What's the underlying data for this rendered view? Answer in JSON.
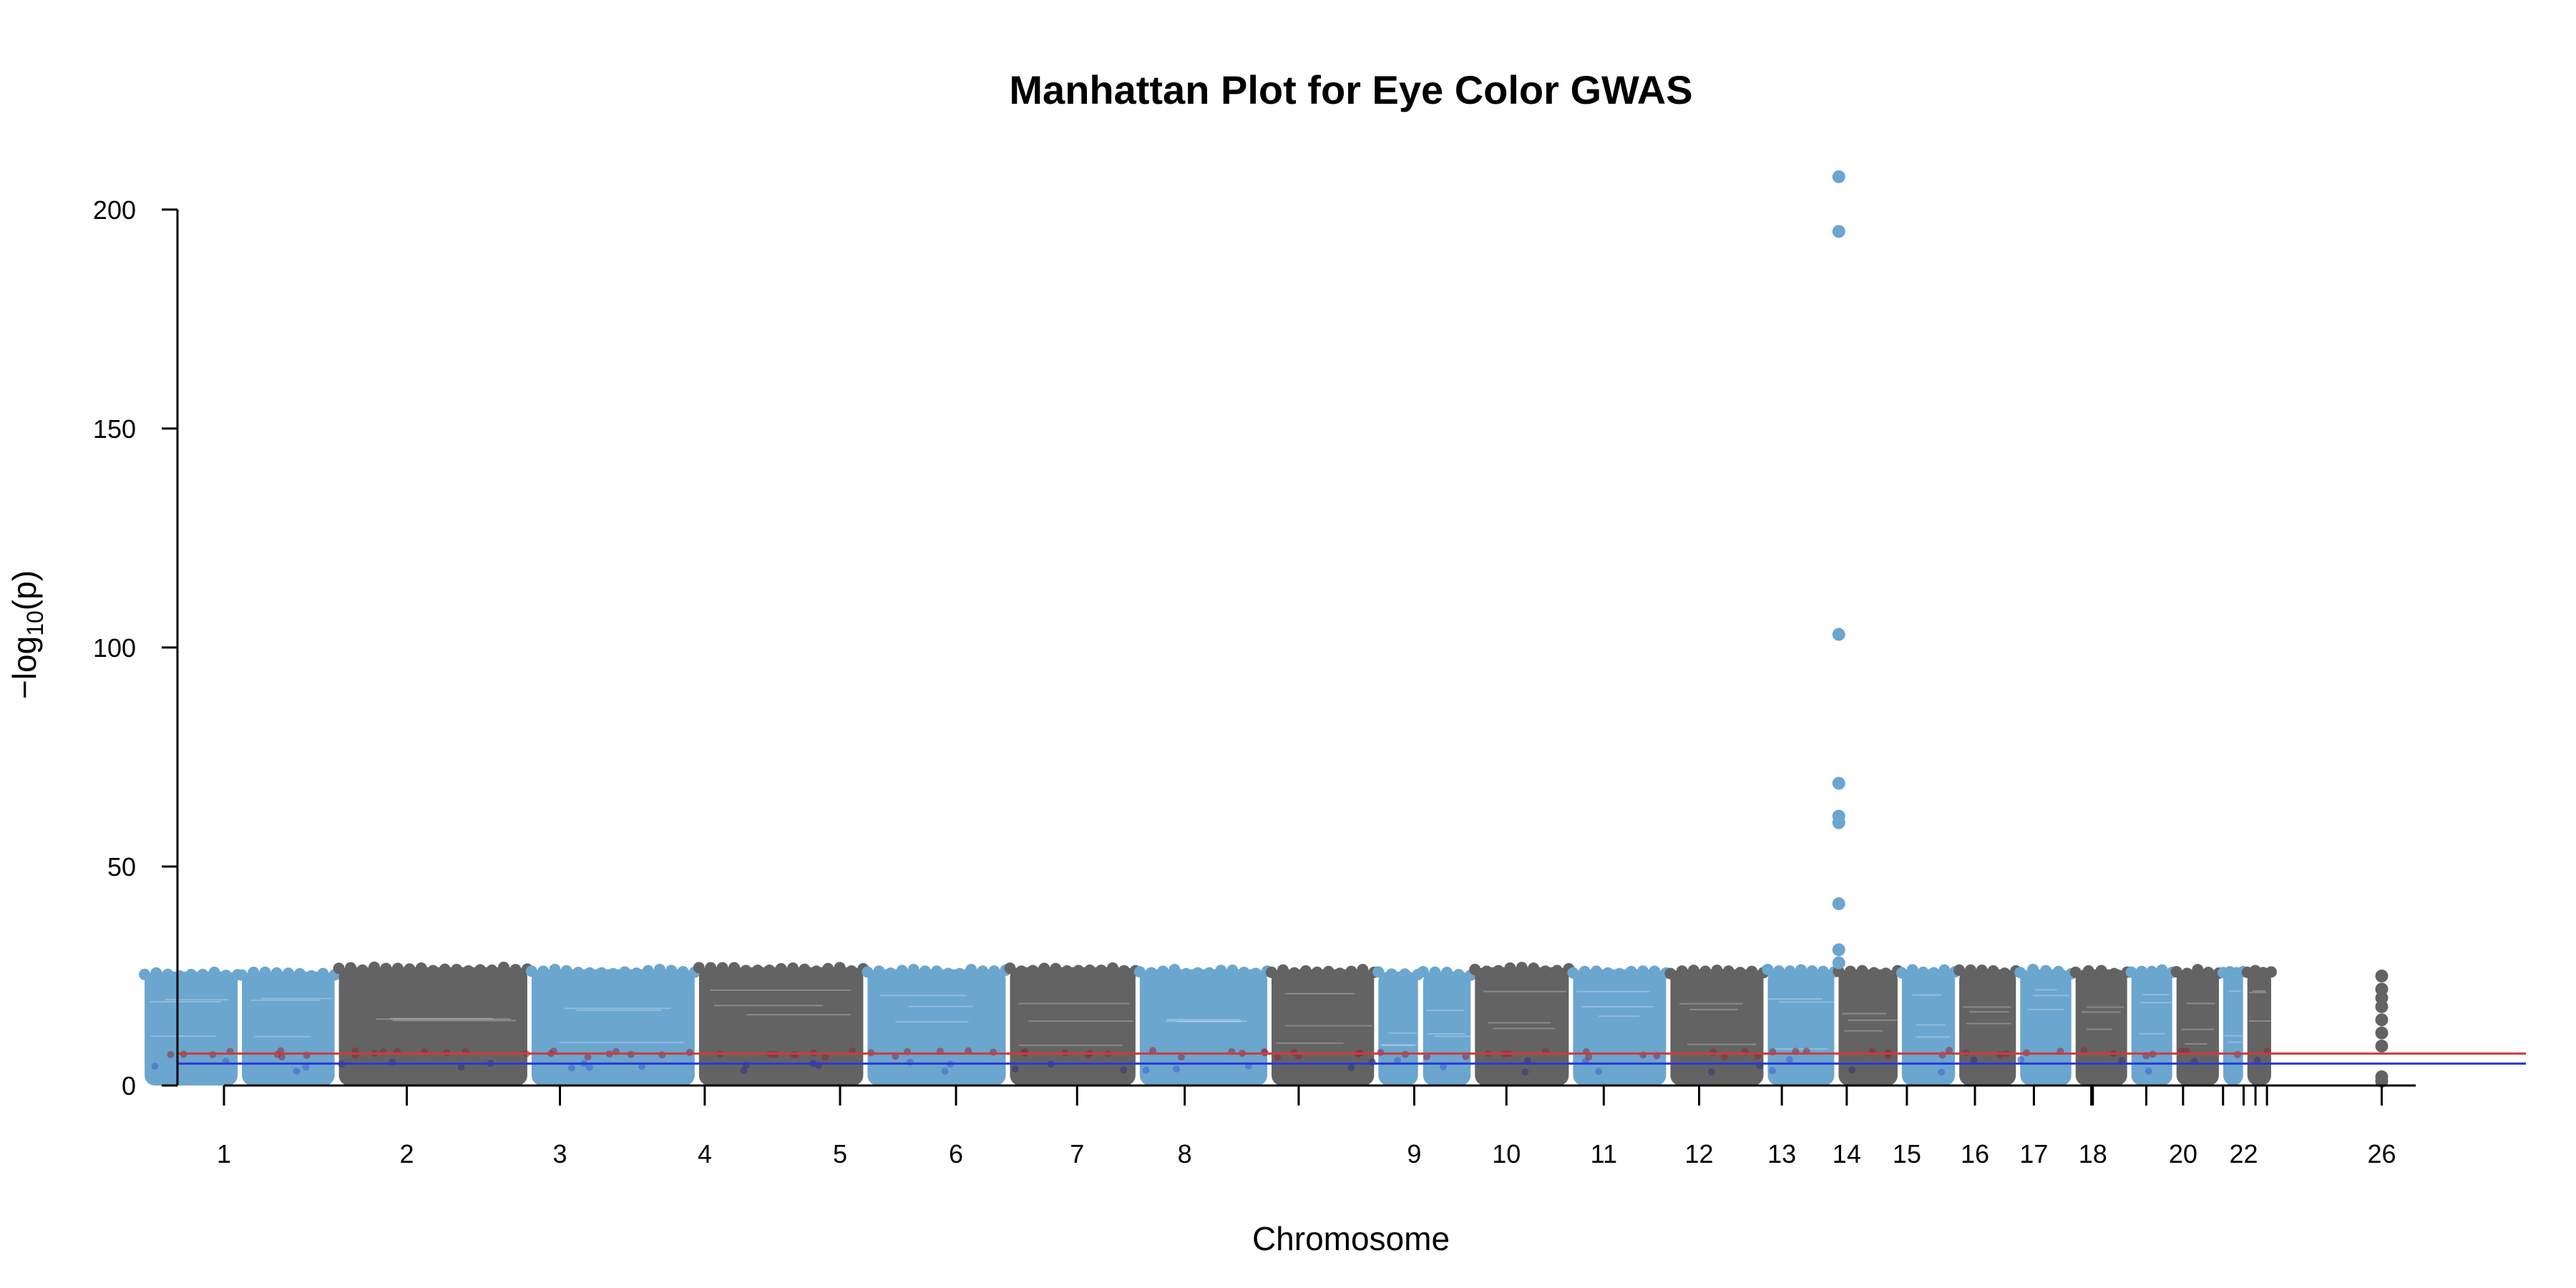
{
  "chart_data": {
    "type": "scatter",
    "subtype": "manhattan",
    "title": "Manhattan Plot for Eye Color GWAS",
    "xlabel": "Chromosome",
    "ylabel": "−log10(p)",
    "ylabel_main": "−log",
    "ylabel_sub": "10",
    "ylabel_paren": "(p)",
    "ylim": [
      0,
      207
    ],
    "yticks": [
      0,
      50,
      100,
      150,
      200
    ],
    "grid": false,
    "legend": "none",
    "colors": {
      "light": "#6BA6CF",
      "dark": "#636363",
      "suggestive_line": "#2A38D6",
      "genomewide_line": "#D03A3A"
    },
    "thresholds": {
      "genomewide": 7.3,
      "suggestive": 5
    },
    "chromosomes": [
      {
        "label": "1",
        "color": "light",
        "start": 0,
        "end": 24.6,
        "max_band": 26
      },
      {
        "label": "",
        "color": "light",
        "start": 24.6,
        "end": 49.1,
        "max_band": 26
      },
      {
        "label": "2",
        "color": "dark",
        "start": 49.1,
        "end": 97.8,
        "max_band": 27
      },
      {
        "label": "3",
        "color": "light",
        "start": 97.8,
        "end": 140.1,
        "max_band": 26.5
      },
      {
        "label": "4",
        "color": "dark",
        "start": 140.1,
        "end": 182.7,
        "max_band": 27
      },
      {
        "label": "5",
        "color": "light",
        "start": 182.7,
        "end": 218.7,
        "max_band": 26.5
      },
      {
        "label": "6",
        "color": "dark",
        "start": 218.7,
        "end": 251.5,
        "max_band": 27
      },
      {
        "label": "7",
        "color": "light",
        "start": 251.5,
        "end": 284.8,
        "max_band": 26.5
      },
      {
        "label": "8",
        "color": "dark",
        "start": 284.8,
        "end": 311.8,
        "max_band": 26.5
      },
      {
        "label": "",
        "color": "light",
        "start": 311.8,
        "end": 322.9,
        "max_band": 26
      },
      {
        "label": "9",
        "color": "light",
        "start": 323.1,
        "end": 336.2,
        "max_band": 26
      },
      {
        "label": "10",
        "color": "dark",
        "start": 336.2,
        "end": 361.0,
        "max_band": 27
      },
      {
        "label": "11",
        "color": "light",
        "start": 361.0,
        "end": 385.6,
        "max_band": 26.5
      },
      {
        "label": "12",
        "color": "dark",
        "start": 385.6,
        "end": 410.2,
        "max_band": 26.5
      },
      {
        "label": "13",
        "color": "light",
        "start": 410.2,
        "end": 428.1,
        "max_band": 26.5
      },
      {
        "label": "14",
        "color": "dark",
        "start": 428.1,
        "end": 444.1,
        "max_band": 26.5
      },
      {
        "label": "15",
        "color": "light",
        "start": 444.1,
        "end": 458.6,
        "max_band": 26.5
      },
      {
        "label": "16",
        "color": "dark",
        "start": 458.6,
        "end": 474.0,
        "max_band": 26.5
      },
      {
        "label": "17",
        "color": "light",
        "start": 474.0,
        "end": 488.0,
        "max_band": 26.5
      },
      {
        "label": "18",
        "color": "dark",
        "start": 488.0,
        "end": 502.1,
        "max_band": 26.5
      },
      {
        "label": "",
        "color": "light",
        "start": 502.1,
        "end": 513.5,
        "max_band": 26.5
      },
      {
        "label": "20",
        "color": "dark",
        "start": 513.5,
        "end": 525.3,
        "max_band": 26.5
      },
      {
        "label": "",
        "color": "light",
        "start": 525.3,
        "end": 531.4,
        "max_band": 26.5
      },
      {
        "label": "22",
        "color": "dark",
        "start": 531.4,
        "end": 538.5,
        "max_band": 26.5
      }
    ],
    "xticks": [
      {
        "pos": 20.6,
        "label": "1"
      },
      {
        "pos": 66.8,
        "label": "2"
      },
      {
        "pos": 105.5,
        "label": "3"
      },
      {
        "pos": 142.1,
        "label": "4"
      },
      {
        "pos": 176.3,
        "label": "5"
      },
      {
        "pos": 205.6,
        "label": "6"
      },
      {
        "pos": 236.2,
        "label": "7"
      },
      {
        "pos": 263.4,
        "label": "8"
      },
      {
        "pos": 292.2,
        "label": ""
      },
      {
        "pos": 321.4,
        "label": "9"
      },
      {
        "pos": 344.7,
        "label": "10"
      },
      {
        "pos": 369.3,
        "label": "11"
      },
      {
        "pos": 393.4,
        "label": "12"
      },
      {
        "pos": 414.3,
        "label": "13"
      },
      {
        "pos": 430.7,
        "label": "14"
      },
      {
        "pos": 445.9,
        "label": "15"
      },
      {
        "pos": 463.1,
        "label": "16"
      },
      {
        "pos": 478.0,
        "label": "17"
      },
      {
        "pos": 492.5,
        "label": ""
      },
      {
        "pos": 492.9,
        "label": "18"
      },
      {
        "pos": 506.4,
        "label": ""
      },
      {
        "pos": 515.7,
        "label": "20"
      },
      {
        "pos": 525.8,
        "label": ""
      },
      {
        "pos": 531.0,
        "label": "22"
      },
      {
        "pos": 534.0,
        "label": ""
      },
      {
        "pos": 536.9,
        "label": ""
      },
      {
        "pos": 565.9,
        "label": "26"
      }
    ],
    "xlim": [
      -36,
      615
    ],
    "xaxis_end": 574.5,
    "peak_points": [
      {
        "x": 428.7,
        "y": 207.5
      },
      {
        "x": 428.7,
        "y": 195
      },
      {
        "x": 428.7,
        "y": 103
      },
      {
        "x": 428.7,
        "y": 69
      },
      {
        "x": 428.7,
        "y": 61.5
      },
      {
        "x": 428.7,
        "y": 60
      },
      {
        "x": 428.7,
        "y": 41.5
      },
      {
        "x": 428.7,
        "y": 31
      },
      {
        "x": 428.7,
        "y": 28
      }
    ],
    "chr26_points": [
      {
        "x": 565.9,
        "y": 25
      },
      {
        "x": 565.9,
        "y": 22
      },
      {
        "x": 565.9,
        "y": 20
      },
      {
        "x": 565.9,
        "y": 18
      },
      {
        "x": 565.9,
        "y": 15
      },
      {
        "x": 565.9,
        "y": 12
      },
      {
        "x": 565.9,
        "y": 9
      },
      {
        "x": 565.9,
        "y": 2
      },
      {
        "x": 565.9,
        "y": 1
      }
    ]
  }
}
